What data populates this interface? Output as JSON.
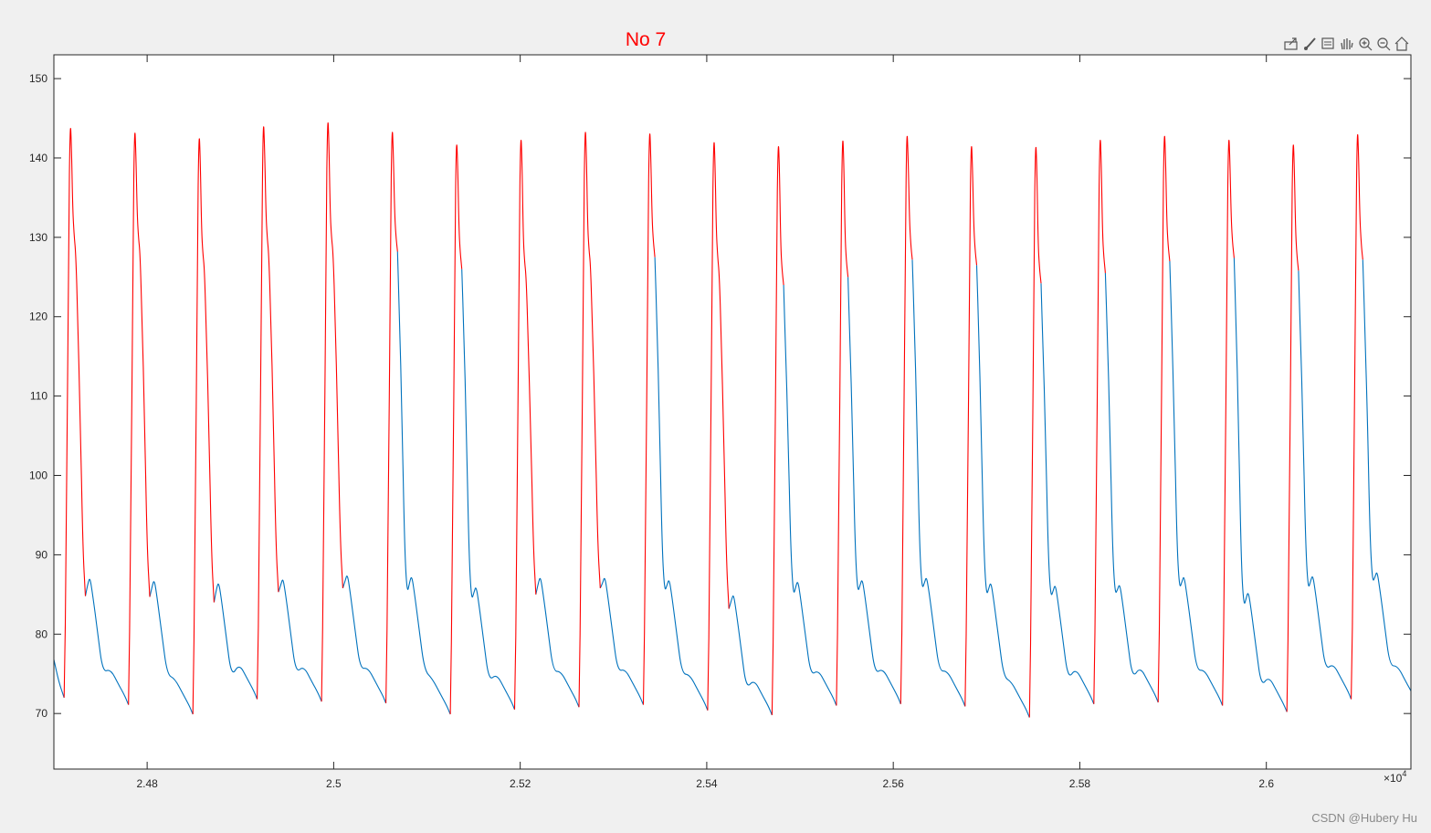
{
  "figure": {
    "background": "#f0f0f0",
    "axes_background": "#ffffff",
    "watermark": "CSDN @Hubery Hu"
  },
  "toolbar": {
    "icons": [
      "export-icon",
      "brush-icon",
      "datatip-icon",
      "pan-icon",
      "zoom-in-icon",
      "zoom-out-icon",
      "home-icon"
    ]
  },
  "chart_data": {
    "type": "line",
    "title": "No 7",
    "title_color": "#ff0000",
    "xlabel": "",
    "ylabel": "",
    "x_exponent_label": "×10",
    "x_exponent_power": "4",
    "xlim": [
      24700,
      26155
    ],
    "ylim": [
      63,
      153
    ],
    "x_scale_factor": 10000,
    "x_ticks": [
      24800,
      25000,
      25200,
      25400,
      25600,
      25800,
      26000
    ],
    "x_tick_labels": [
      "2.48",
      "2.5",
      "2.52",
      "2.54",
      "2.56",
      "2.58",
      "2.6"
    ],
    "y_ticks": [
      70,
      80,
      90,
      100,
      110,
      120,
      130,
      140,
      150
    ],
    "y_tick_labels": [
      "70",
      "80",
      "90",
      "100",
      "110",
      "120",
      "130",
      "140",
      "150"
    ],
    "grid": false,
    "series": [
      {
        "label_on_chart": "",
        "color": "#0072bd",
        "role": "full signal",
        "beats": [
          {
            "onset_x": 24711,
            "onset_y": 72,
            "peak_y": 145.3,
            "shoulder_y": 130.2,
            "notch_y": 84.8,
            "bump_y": 87.2,
            "end_x": 24780,
            "end_y": 71.1,
            "red_until": "notch"
          },
          {
            "onset_x": 24780,
            "onset_y": 71.1,
            "peak_y": 144.7,
            "shoulder_y": 130.0,
            "notch_y": 84.7,
            "bump_y": 86.9,
            "end_x": 24849,
            "end_y": 69.9,
            "red_until": "notch"
          },
          {
            "onset_x": 24849,
            "onset_y": 69.9,
            "peak_y": 144.0,
            "shoulder_y": 128.0,
            "notch_y": 84.0,
            "bump_y": 86.6,
            "end_x": 24918,
            "end_y": 71.8,
            "red_until": "notch"
          },
          {
            "onset_x": 24918,
            "onset_y": 71.8,
            "peak_y": 145.5,
            "shoulder_y": 130.0,
            "notch_y": 85.3,
            "bump_y": 87.1,
            "end_x": 24987,
            "end_y": 71.5,
            "red_until": "notch"
          },
          {
            "onset_x": 24987,
            "onset_y": 71.5,
            "peak_y": 146.0,
            "shoulder_y": 130.0,
            "notch_y": 85.8,
            "bump_y": 87.6,
            "end_x": 25056,
            "end_y": 71.3,
            "red_until": "notch"
          },
          {
            "onset_x": 25056,
            "onset_y": 71.3,
            "peak_y": 144.8,
            "shoulder_y": 130.2,
            "notch_y": 85.0,
            "bump_y": 87.4,
            "end_x": 25125,
            "end_y": 69.9,
            "red_until": "shoulder"
          },
          {
            "onset_x": 25125,
            "onset_y": 69.9,
            "peak_y": 143.2,
            "shoulder_y": 128.0,
            "notch_y": 84.2,
            "bump_y": 86.1,
            "end_x": 25194,
            "end_y": 70.5,
            "red_until": "shoulder"
          },
          {
            "onset_x": 25194,
            "onset_y": 70.5,
            "peak_y": 143.8,
            "shoulder_y": 127.0,
            "notch_y": 85.0,
            "bump_y": 87.3,
            "end_x": 25263,
            "end_y": 70.8,
            "red_until": "notch"
          },
          {
            "onset_x": 25263,
            "onset_y": 70.8,
            "peak_y": 144.8,
            "shoulder_y": 128.5,
            "notch_y": 85.8,
            "bump_y": 87.3,
            "end_x": 25332,
            "end_y": 71.1,
            "red_until": "notch"
          },
          {
            "onset_x": 25332,
            "onset_y": 71.1,
            "peak_y": 144.6,
            "shoulder_y": 129.5,
            "notch_y": 85.3,
            "bump_y": 87.0,
            "end_x": 25401,
            "end_y": 70.4,
            "red_until": "shoulder"
          },
          {
            "onset_x": 25401,
            "onset_y": 70.4,
            "peak_y": 143.5,
            "shoulder_y": 127.5,
            "notch_y": 83.2,
            "bump_y": 85.1,
            "end_x": 25470,
            "end_y": 69.8,
            "red_until": "notch"
          },
          {
            "onset_x": 25470,
            "onset_y": 69.8,
            "peak_y": 143.0,
            "shoulder_y": 126.0,
            "notch_y": 84.8,
            "bump_y": 86.8,
            "end_x": 25539,
            "end_y": 71.0,
            "red_until": "shoulder"
          },
          {
            "onset_x": 25539,
            "onset_y": 71.0,
            "peak_y": 143.7,
            "shoulder_y": 127.0,
            "notch_y": 85.2,
            "bump_y": 87.0,
            "end_x": 25608,
            "end_y": 71.2,
            "red_until": "shoulder"
          },
          {
            "onset_x": 25608,
            "onset_y": 71.2,
            "peak_y": 144.3,
            "shoulder_y": 129.2,
            "notch_y": 85.6,
            "bump_y": 87.3,
            "end_x": 25677,
            "end_y": 70.9,
            "red_until": "shoulder"
          },
          {
            "onset_x": 25677,
            "onset_y": 70.9,
            "peak_y": 143.0,
            "shoulder_y": 128.5,
            "notch_y": 84.8,
            "bump_y": 86.6,
            "end_x": 25746,
            "end_y": 69.5,
            "red_until": "shoulder"
          },
          {
            "onset_x": 25746,
            "onset_y": 69.5,
            "peak_y": 142.9,
            "shoulder_y": 126.2,
            "notch_y": 84.6,
            "bump_y": 86.3,
            "end_x": 25815,
            "end_y": 71.2,
            "red_until": "shoulder"
          },
          {
            "onset_x": 25815,
            "onset_y": 71.2,
            "peak_y": 143.8,
            "shoulder_y": 127.5,
            "notch_y": 85.0,
            "bump_y": 86.4,
            "end_x": 25884,
            "end_y": 71.4,
            "red_until": "shoulder"
          },
          {
            "onset_x": 25884,
            "onset_y": 71.4,
            "peak_y": 144.3,
            "shoulder_y": 129.0,
            "notch_y": 85.7,
            "bump_y": 87.4,
            "end_x": 25953,
            "end_y": 71.0,
            "red_until": "shoulder"
          },
          {
            "onset_x": 25953,
            "onset_y": 71.0,
            "peak_y": 143.8,
            "shoulder_y": 129.4,
            "notch_y": 83.4,
            "bump_y": 85.4,
            "end_x": 26022,
            "end_y": 70.2,
            "red_until": "shoulder"
          },
          {
            "onset_x": 26022,
            "onset_y": 70.2,
            "peak_y": 143.2,
            "shoulder_y": 127.8,
            "notch_y": 85.6,
            "bump_y": 87.5,
            "end_x": 26091,
            "end_y": 71.8,
            "red_until": "shoulder"
          },
          {
            "onset_x": 26091,
            "onset_y": 71.8,
            "peak_y": 144.5,
            "shoulder_y": 129.2,
            "notch_y": 86.5,
            "bump_y": 88.0,
            "end_x": 26160,
            "end_y": 71.5,
            "red_until": "shoulder"
          }
        ],
        "start_x": 24700,
        "start_y": 76.8
      },
      {
        "label_on_chart": "",
        "color": "#ff0000",
        "role": "highlighted systolic segments"
      }
    ]
  }
}
